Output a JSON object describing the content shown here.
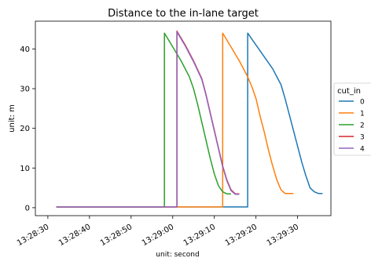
{
  "chart_data": {
    "type": "line",
    "title": "Distance to the in-lane target",
    "xlabel": "unit: second",
    "ylabel": "unit: m",
    "xlim": [
      "13:28:27",
      "13:29:38"
    ],
    "ylim": [
      -2,
      47
    ],
    "x_ticks": [
      "13:28:30",
      "13:28:40",
      "13:28:50",
      "13:29:00",
      "13:29:10",
      "13:29:20",
      "13:29:30"
    ],
    "y_ticks": [
      0,
      10,
      20,
      30,
      40
    ],
    "legend": {
      "title": "cut_in",
      "placement": "right-outside"
    },
    "series": [
      {
        "name": "0",
        "color": "#1f77b4",
        "points": [
          [
            "13:28:32",
            0.2
          ],
          [
            "13:29:18",
            0.2
          ],
          [
            "13:29:18",
            44
          ],
          [
            "13:29:20",
            41
          ],
          [
            "13:29:22",
            38
          ],
          [
            "13:29:24",
            35
          ],
          [
            "13:29:25",
            33
          ],
          [
            "13:29:26",
            31
          ],
          [
            "13:29:27",
            27.5
          ],
          [
            "13:29:28",
            23.5
          ],
          [
            "13:29:29",
            19.5
          ],
          [
            "13:29:30",
            15.5
          ],
          [
            "13:29:31",
            11.5
          ],
          [
            "13:29:32",
            8
          ],
          [
            "13:29:33",
            5
          ],
          [
            "13:29:34",
            4
          ],
          [
            "13:29:35",
            3.6
          ],
          [
            "13:29:36",
            3.6
          ]
        ]
      },
      {
        "name": "1",
        "color": "#ff7f0e",
        "points": [
          [
            "13:28:32",
            0.2
          ],
          [
            "13:29:12",
            0.2
          ],
          [
            "13:29:12",
            44
          ],
          [
            "13:29:14",
            40.5
          ],
          [
            "13:29:16",
            37
          ],
          [
            "13:29:18",
            33
          ],
          [
            "13:29:19",
            30.5
          ],
          [
            "13:29:20",
            27.5
          ],
          [
            "13:29:21",
            23
          ],
          [
            "13:29:22",
            19
          ],
          [
            "13:29:23",
            14.5
          ],
          [
            "13:29:24",
            10.5
          ],
          [
            "13:29:25",
            7
          ],
          [
            "13:29:26",
            4.5
          ],
          [
            "13:29:27",
            3.6
          ],
          [
            "13:29:29",
            3.6
          ]
        ]
      },
      {
        "name": "2",
        "color": "#2ca02c",
        "points": [
          [
            "13:28:32",
            0.2
          ],
          [
            "13:28:58",
            0.2
          ],
          [
            "13:28:58",
            44
          ],
          [
            "13:29:00",
            40.5
          ],
          [
            "13:29:02",
            37
          ],
          [
            "13:29:04",
            33
          ],
          [
            "13:29:05",
            30
          ],
          [
            "13:29:06",
            26
          ],
          [
            "13:29:07",
            21.5
          ],
          [
            "13:29:08",
            17
          ],
          [
            "13:29:09",
            12.5
          ],
          [
            "13:29:10",
            8.5
          ],
          [
            "13:29:11",
            5.5
          ],
          [
            "13:29:12",
            4
          ],
          [
            "13:29:13",
            3.5
          ],
          [
            "13:29:14",
            3.5
          ]
        ]
      },
      {
        "name": "3",
        "color": "#d62728",
        "points": [
          [
            "13:28:32",
            0.2
          ],
          [
            "13:29:01",
            0.2
          ],
          [
            "13:29:01",
            44.5
          ],
          [
            "13:29:03",
            41
          ],
          [
            "13:29:05",
            37
          ],
          [
            "13:29:07",
            32.5
          ],
          [
            "13:29:08",
            28.5
          ],
          [
            "13:29:09",
            24
          ],
          [
            "13:29:10",
            19.5
          ],
          [
            "13:29:11",
            15
          ],
          [
            "13:29:12",
            10.5
          ],
          [
            "13:29:13",
            7
          ],
          [
            "13:29:14",
            4.5
          ],
          [
            "13:29:15",
            3.5
          ],
          [
            "13:29:16",
            3.5
          ]
        ]
      },
      {
        "name": "4",
        "color": "#9467bd",
        "points": [
          [
            "13:28:32",
            0.2
          ],
          [
            "13:29:01",
            0.2
          ],
          [
            "13:29:01",
            44.3
          ],
          [
            "13:29:03",
            40.8
          ],
          [
            "13:29:05",
            36.8
          ],
          [
            "13:29:07",
            32.3
          ],
          [
            "13:29:08",
            28.3
          ],
          [
            "13:29:09",
            23.8
          ],
          [
            "13:29:10",
            19.3
          ],
          [
            "13:29:11",
            14.8
          ],
          [
            "13:29:12",
            10.3
          ],
          [
            "13:29:13",
            6.8
          ],
          [
            "13:29:14",
            4.3
          ],
          [
            "13:29:15",
            3.4
          ],
          [
            "13:29:16",
            3.4
          ]
        ]
      }
    ]
  }
}
